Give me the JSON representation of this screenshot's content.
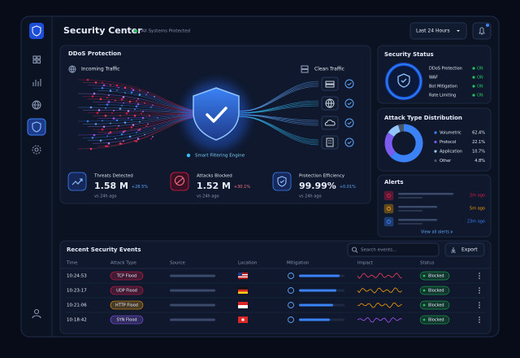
{
  "header": {
    "title": "Security Center",
    "status": "All Systems Protected",
    "time_range": "Last 24 Hours"
  },
  "ddos": {
    "title": "DDoS Protection",
    "incoming": "Incoming Traffic",
    "clean": "Clean Traffic",
    "engine": "Smart Filtering Engine",
    "stats": [
      {
        "label": "Threats Detected",
        "value": "1.58 M",
        "change": "+28.5%",
        "note": "vs 24h ago",
        "color": "#3b82f6"
      },
      {
        "label": "Attacks Blocked",
        "value": "1.52 M",
        "change": "+30.1%",
        "note": "vs 24h ago",
        "color": "#e11d48"
      },
      {
        "label": "Protection Efficiency",
        "value": "99.99%",
        "change": "+0.01%",
        "note": "vs 24h ago",
        "color": "#3b82f6"
      }
    ]
  },
  "security_status": {
    "title": "Security Status",
    "items": [
      {
        "name": "DDoS Protection",
        "state": "ON"
      },
      {
        "name": "WAF",
        "state": "ON"
      },
      {
        "name": "Bot Mitigation",
        "state": "ON"
      },
      {
        "name": "Rate Limiting",
        "state": "ON"
      }
    ]
  },
  "attack_types": {
    "title": "Attack Type Distribution",
    "items": [
      {
        "name": "Volumetric",
        "value": 62.4,
        "label": "62.4%",
        "color": "#3b82f6"
      },
      {
        "name": "Protocol",
        "value": 22.1,
        "label": "22.1%",
        "color": "#7c5cf0"
      },
      {
        "name": "Application",
        "value": 10.7,
        "label": "10.7%",
        "color": "#93c5fd"
      },
      {
        "name": "Other",
        "value": 4.8,
        "label": "4.8%",
        "color": "#475569"
      }
    ]
  },
  "alerts": {
    "title": "Alerts",
    "items": [
      {
        "time": "2m ago",
        "color": "#e11d48"
      },
      {
        "time": "5m ago",
        "color": "#f59e0b"
      },
      {
        "time": "23m ago",
        "color": "#3b82f6"
      }
    ],
    "link": "View all alerts"
  },
  "events": {
    "title": "Recent Security Events",
    "search": "Search events...",
    "export": "Export",
    "columns": [
      "Time",
      "Attack Type",
      "Source",
      "Location",
      "Mitigation",
      "Impact",
      "Status"
    ],
    "rows": [
      {
        "time": "10:24:53",
        "type": "TCP Flood",
        "color": "#e11d48",
        "status": "Blocked"
      },
      {
        "time": "10:23:17",
        "type": "UDP Flood",
        "color": "#e11d48",
        "status": "Blocked"
      },
      {
        "time": "10:21:06",
        "type": "HTTP Flood",
        "color": "#f59e0b",
        "status": "Blocked"
      },
      {
        "time": "10:18:42",
        "type": "SYN Flood",
        "color": "#8b5cf6",
        "status": "Blocked"
      }
    ]
  }
}
